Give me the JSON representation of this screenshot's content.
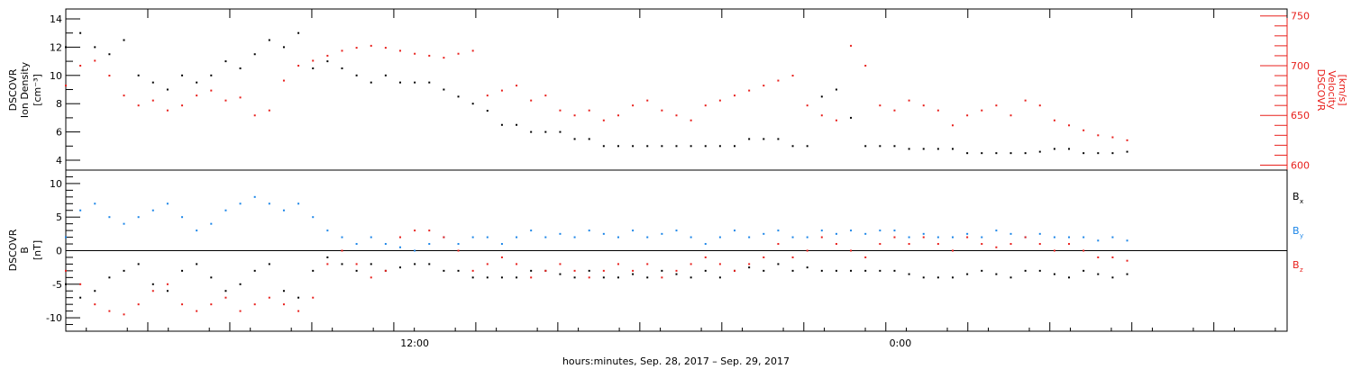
{
  "colors": {
    "black": "#000000",
    "red": "#e8201c",
    "blue": "#1c86e8"
  },
  "x_axis": {
    "label": "hours:minutes, Sep. 28, 2017 – Sep. 29, 2017",
    "range_hours": [
      0,
      42
    ],
    "ticks_hours": [
      0,
      2.82,
      5.64,
      8.46,
      11.28,
      14.1,
      16.92,
      19.74,
      22.56,
      25.38,
      28.2,
      31.02,
      33.84,
      36.66,
      39.48,
      42
    ],
    "tick_labels": [
      {
        "hours": 12,
        "text": "12:00"
      },
      {
        "hours": 28.7,
        "text": "0:00"
      }
    ]
  },
  "chart_data": [
    {
      "type": "scatter",
      "panel": "top",
      "ylabel_left": [
        "DSCOVR",
        "Ion Density",
        "[cm⁻³]"
      ],
      "ylabel_right": [
        "DSCOVR",
        "Velocity",
        "[km/s]"
      ],
      "ylim_left": [
        3.3,
        14.7
      ],
      "ylim_right": [
        595,
        757
      ],
      "yticks_left": [
        4,
        6,
        8,
        10,
        12,
        14
      ],
      "yticks_right": [
        600,
        650,
        700,
        750
      ],
      "grid": false,
      "series": [
        {
          "color": "black",
          "axis": "left",
          "x": [
            0,
            0.5,
            1,
            1.5,
            2,
            2.5,
            3,
            3.5,
            4,
            4.5,
            5,
            5.5,
            6,
            6.5,
            7,
            7.5,
            8,
            8.5,
            9,
            9.5,
            10,
            10.5,
            11,
            11.5,
            12,
            12.5,
            13,
            13.5,
            14,
            14.5,
            15,
            15.5,
            16,
            16.5,
            17,
            17.5,
            18,
            18.5,
            19,
            19.5,
            20,
            20.5,
            21,
            21.5,
            22,
            22.5,
            23,
            23.5,
            24,
            24.5,
            25,
            25.5,
            26,
            26.5,
            27,
            27.5,
            28,
            28.5,
            29,
            29.5,
            30,
            30.5,
            31,
            31.5,
            32,
            32.5,
            33,
            33.5,
            34,
            34.5,
            35,
            35.5,
            36,
            36.5
          ],
          "y": [
            12,
            13,
            12,
            11.5,
            12.5,
            10,
            9.5,
            9,
            10,
            9.5,
            10,
            11,
            10.5,
            11.5,
            12.5,
            12,
            13,
            10.5,
            11,
            10.5,
            10,
            9.5,
            10,
            9.5,
            9.5,
            9.5,
            9,
            8.5,
            8,
            7.5,
            6.5,
            6.5,
            6,
            6,
            6,
            5.5,
            5.5,
            5,
            5,
            5,
            5,
            5,
            5,
            5,
            5,
            5,
            5,
            5.5,
            5.5,
            5.5,
            5,
            5,
            8.5,
            9,
            7,
            5,
            5,
            5,
            4.8,
            4.8,
            4.8,
            4.8,
            4.5,
            4.5,
            4.5,
            4.5,
            4.5,
            4.6,
            4.8,
            4.8,
            4.5,
            4.5,
            4.5,
            4.6
          ]
        },
        {
          "color": "red",
          "axis": "right",
          "x": [
            0,
            0.5,
            1,
            1.5,
            2,
            2.5,
            3,
            3.5,
            4,
            4.5,
            5,
            5.5,
            6,
            6.5,
            7,
            7.5,
            8,
            8.5,
            9,
            9.5,
            10,
            10.5,
            11,
            11.5,
            12,
            12.5,
            13,
            13.5,
            14,
            14.5,
            15,
            15.5,
            16,
            16.5,
            17,
            17.5,
            18,
            18.5,
            19,
            19.5,
            20,
            20.5,
            21,
            21.5,
            22,
            22.5,
            23,
            23.5,
            24,
            24.5,
            25,
            25.5,
            26,
            26.5,
            27,
            27.5,
            28,
            28.5,
            29,
            29.5,
            30,
            30.5,
            31,
            31.5,
            32,
            32.5,
            33,
            33.5,
            34,
            34.5,
            35,
            35.5,
            36,
            36.5
          ],
          "y": [
            680,
            700,
            705,
            690,
            670,
            660,
            665,
            655,
            660,
            670,
            675,
            665,
            668,
            650,
            655,
            685,
            700,
            705,
            710,
            715,
            718,
            720,
            718,
            715,
            712,
            710,
            708,
            712,
            715,
            670,
            675,
            680,
            665,
            670,
            655,
            650,
            655,
            645,
            650,
            660,
            665,
            655,
            650,
            645,
            660,
            665,
            670,
            675,
            680,
            685,
            690,
            660,
            650,
            645,
            720,
            700,
            660,
            655,
            665,
            660,
            655,
            640,
            650,
            655,
            660,
            650,
            665,
            660,
            645,
            640,
            635,
            630,
            628,
            625
          ]
        }
      ]
    },
    {
      "type": "scatter",
      "panel": "bottom",
      "ylabel_left": [
        "DSCOVR",
        "B",
        "[nT]"
      ],
      "ylim": [
        -12,
        12
      ],
      "yticks": [
        -10,
        -5,
        0,
        5,
        10
      ],
      "zero_line": true,
      "grid": false,
      "legend": [
        {
          "text": "B",
          "sub": "x",
          "color": "black"
        },
        {
          "text": "B",
          "sub": "y",
          "color": "blue"
        },
        {
          "text": "B",
          "sub": "z",
          "color": "red"
        }
      ],
      "legend_position": "right",
      "series": [
        {
          "color": "black",
          "x": [
            0,
            0.5,
            1,
            1.5,
            2,
            2.5,
            3,
            3.5,
            4,
            4.5,
            5,
            5.5,
            6,
            6.5,
            7,
            7.5,
            8,
            8.5,
            9,
            9.5,
            10,
            10.5,
            11,
            11.5,
            12,
            12.5,
            13,
            13.5,
            14,
            14.5,
            15,
            15.5,
            16,
            16.5,
            17,
            17.5,
            18,
            18.5,
            19,
            19.5,
            20,
            20.5,
            21,
            21.5,
            22,
            22.5,
            23,
            23.5,
            24,
            24.5,
            25,
            25.5,
            26,
            26.5,
            27,
            27.5,
            28,
            28.5,
            29,
            29.5,
            30,
            30.5,
            31,
            31.5,
            32,
            32.5,
            33,
            33.5,
            34,
            34.5,
            35,
            35.5,
            36,
            36.5
          ],
          "y": [
            -5,
            -7,
            -6,
            -4,
            -3,
            -2,
            -5,
            -6,
            -3,
            -2,
            -4,
            -6,
            -5,
            -3,
            -2,
            -6,
            -7,
            -3,
            -1,
            -2,
            -3,
            -2,
            -3,
            -2.5,
            -2,
            -2,
            -3,
            -3,
            -4,
            -4,
            -4,
            -4,
            -3,
            -3,
            -3.5,
            -4,
            -3,
            -4,
            -4,
            -3.5,
            -4,
            -3,
            -3.5,
            -4,
            -3,
            -4,
            -3,
            -2.5,
            -3,
            -2,
            -3,
            -2.5,
            -3,
            -3,
            -3,
            -3,
            -3,
            -3,
            -3.5,
            -4,
            -4,
            -4,
            -3.5,
            -3,
            -3.5,
            -4,
            -3,
            -3,
            -3.5,
            -4,
            -3,
            -3.5,
            -4,
            -3.5
          ]
        },
        {
          "color": "blue",
          "x": [
            0,
            0.5,
            1,
            1.5,
            2,
            2.5,
            3,
            3.5,
            4,
            4.5,
            5,
            5.5,
            6,
            6.5,
            7,
            7.5,
            8,
            8.5,
            9,
            9.5,
            10,
            10.5,
            11,
            11.5,
            12,
            12.5,
            13,
            13.5,
            14,
            14.5,
            15,
            15.5,
            16,
            16.5,
            17,
            17.5,
            18,
            18.5,
            19,
            19.5,
            20,
            20.5,
            21,
            21.5,
            22,
            22.5,
            23,
            23.5,
            24,
            24.5,
            25,
            25.5,
            26,
            26.5,
            27,
            27.5,
            28,
            28.5,
            29,
            29.5,
            30,
            30.5,
            31,
            31.5,
            32,
            32.5,
            33,
            33.5,
            34,
            34.5,
            35,
            35.5,
            36,
            36.5
          ],
          "y": [
            2,
            6,
            7,
            5,
            4,
            5,
            6,
            7,
            5,
            3,
            4,
            6,
            7,
            8,
            7,
            6,
            7,
            5,
            3,
            2,
            1,
            2,
            1,
            0.5,
            0,
            1,
            2,
            1,
            2,
            2,
            1,
            2,
            3,
            2,
            2.5,
            2,
            3,
            2.5,
            2,
            3,
            2,
            2.5,
            3,
            2,
            1,
            2,
            3,
            2,
            2.5,
            3,
            2,
            2,
            3,
            2.5,
            3,
            2.5,
            3,
            3,
            2,
            2.5,
            2,
            2,
            2.5,
            2,
            3,
            2.5,
            2,
            2.5,
            2,
            2,
            2,
            1.5,
            2,
            1.5
          ]
        },
        {
          "color": "red",
          "x": [
            0,
            0.5,
            1,
            1.5,
            2,
            2.5,
            3,
            3.5,
            4,
            4.5,
            5,
            5.5,
            6,
            6.5,
            7,
            7.5,
            8,
            8.5,
            9,
            9.5,
            10,
            10.5,
            11,
            11.5,
            12,
            12.5,
            13,
            13.5,
            14,
            14.5,
            15,
            15.5,
            16,
            16.5,
            17,
            17.5,
            18,
            18.5,
            19,
            19.5,
            20,
            20.5,
            21,
            21.5,
            22,
            22.5,
            23,
            23.5,
            24,
            24.5,
            25,
            25.5,
            26,
            26.5,
            27,
            27.5,
            28,
            28.5,
            29,
            29.5,
            30,
            30.5,
            31,
            31.5,
            32,
            32.5,
            33,
            33.5,
            34,
            34.5,
            35,
            35.5,
            36,
            36.5
          ],
          "y": [
            -3,
            -5,
            -8,
            -9,
            -9.5,
            -8,
            -6,
            -5,
            -8,
            -9,
            -8,
            -7,
            -9,
            -8,
            -7,
            -8,
            -9,
            -7,
            -2,
            0,
            -2,
            -4,
            -3,
            2,
            3,
            3,
            2,
            0,
            -3,
            -2,
            -1,
            -2,
            -4,
            -3,
            -2,
            -3,
            -4,
            -3,
            -2,
            -3,
            -2,
            -4,
            -3,
            -2,
            -1,
            -2,
            -3,
            -2,
            -1,
            1,
            -1,
            0,
            2,
            1,
            0,
            -1,
            1,
            2,
            1,
            2,
            1,
            0,
            2,
            1,
            0.5,
            1,
            2,
            1,
            0,
            1,
            0,
            -1,
            -1,
            -1.5
          ]
        }
      ]
    }
  ]
}
